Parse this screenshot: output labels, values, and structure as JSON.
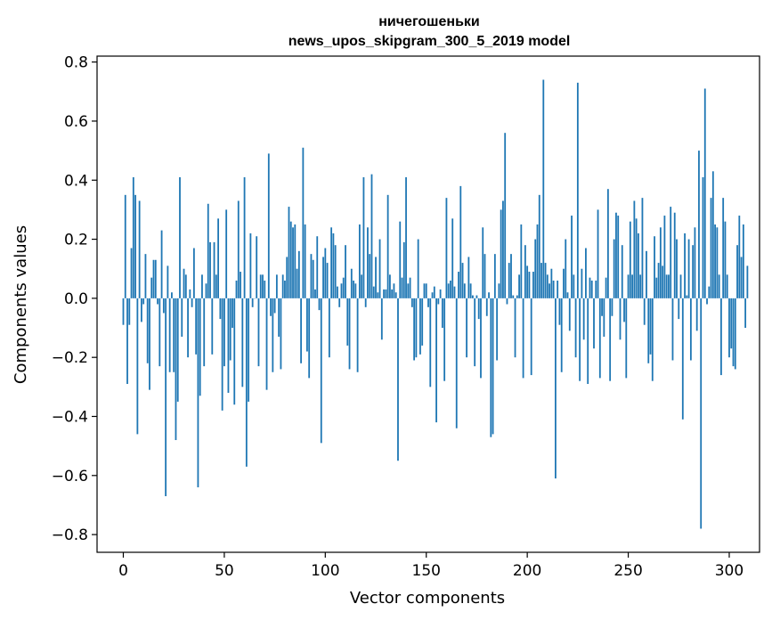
{
  "chart_data": {
    "type": "bar",
    "title_line1": "ничегошеньки",
    "title_line2": "news_upos_skipgram_300_5_2019 model",
    "xlabel": "Vector components",
    "ylabel": "Components values",
    "xlim": [
      -13,
      315
    ],
    "ylim": [
      -0.86,
      0.82
    ],
    "xticks": [
      0,
      50,
      100,
      150,
      200,
      250,
      300
    ],
    "yticks": [
      -0.8,
      -0.6,
      -0.4,
      -0.2,
      0.0,
      0.2,
      0.4,
      0.6,
      0.8
    ],
    "ytick_labels": [
      "−0.8",
      "−0.6",
      "−0.4",
      "−0.2",
      "0.0",
      "0.2",
      "0.4",
      "0.6",
      "0.8"
    ],
    "bar_color": "#1f77b4",
    "values": [
      -0.09,
      0.35,
      -0.29,
      -0.09,
      0.17,
      0.41,
      0.35,
      -0.46,
      0.33,
      -0.08,
      -0.02,
      0.15,
      -0.22,
      -0.31,
      0.07,
      0.13,
      0.13,
      -0.02,
      -0.23,
      0.23,
      -0.05,
      -0.67,
      0.11,
      -0.25,
      0.02,
      -0.25,
      -0.48,
      -0.35,
      0.41,
      -0.13,
      0.1,
      0.08,
      -0.2,
      0.03,
      -0.03,
      0.17,
      -0.19,
      -0.64,
      -0.33,
      0.08,
      -0.23,
      0.05,
      0.32,
      0.19,
      -0.19,
      0.19,
      0.08,
      0.27,
      -0.07,
      -0.38,
      -0.23,
      0.3,
      -0.32,
      -0.21,
      -0.1,
      -0.36,
      0.06,
      0.33,
      0.09,
      -0.3,
      0.41,
      -0.57,
      -0.35,
      0.22,
      -0.03,
      0.0,
      0.21,
      -0.23,
      0.08,
      0.08,
      0.06,
      -0.31,
      0.49,
      -0.06,
      -0.25,
      -0.05,
      0.08,
      -0.13,
      -0.24,
      0.08,
      0.06,
      0.14,
      0.31,
      0.26,
      0.24,
      0.25,
      0.1,
      0.16,
      -0.22,
      0.51,
      0.25,
      -0.18,
      -0.27,
      0.15,
      0.13,
      0.03,
      0.21,
      -0.04,
      -0.49,
      0.14,
      0.17,
      0.12,
      -0.2,
      0.24,
      0.22,
      0.18,
      0.04,
      -0.03,
      0.05,
      0.07,
      0.18,
      -0.16,
      -0.24,
      0.1,
      0.06,
      0.05,
      -0.25,
      0.25,
      0.08,
      0.41,
      -0.03,
      0.24,
      0.15,
      0.42,
      0.04,
      0.14,
      0.02,
      0.2,
      -0.14,
      0.03,
      0.03,
      0.35,
      0.08,
      0.03,
      0.05,
      0.02,
      -0.55,
      0.26,
      0.07,
      0.19,
      0.41,
      0.05,
      0.07,
      -0.03,
      -0.21,
      -0.2,
      0.2,
      -0.19,
      -0.16,
      0.05,
      0.05,
      -0.03,
      -0.3,
      0.02,
      0.04,
      -0.42,
      -0.02,
      0.03,
      -0.1,
      -0.28,
      0.34,
      0.05,
      0.06,
      0.27,
      0.04,
      -0.44,
      0.09,
      0.38,
      0.12,
      0.05,
      -0.2,
      0.14,
      0.05,
      0.01,
      -0.23,
      0.01,
      -0.07,
      -0.27,
      0.24,
      0.15,
      -0.06,
      0.02,
      -0.47,
      -0.46,
      0.15,
      -0.21,
      0.05,
      0.3,
      0.33,
      0.56,
      -0.02,
      0.12,
      0.15,
      0.01,
      -0.2,
      0.01,
      0.08,
      0.25,
      -0.27,
      0.18,
      0.11,
      0.09,
      -0.26,
      0.09,
      0.2,
      0.25,
      0.35,
      0.12,
      0.74,
      0.12,
      0.08,
      0.05,
      0.1,
      0.06,
      -0.61,
      0.06,
      -0.09,
      -0.25,
      0.1,
      0.2,
      0.02,
      -0.11,
      0.28,
      0.08,
      -0.2,
      0.73,
      -0.28,
      0.1,
      -0.14,
      0.17,
      -0.29,
      0.07,
      0.06,
      -0.17,
      0.06,
      0.3,
      -0.27,
      -0.06,
      -0.13,
      0.07,
      0.37,
      -0.28,
      -0.06,
      0.2,
      0.29,
      0.28,
      -0.14,
      0.18,
      -0.08,
      -0.27,
      0.08,
      0.26,
      0.08,
      0.33,
      0.27,
      0.22,
      0.08,
      0.34,
      -0.09,
      0.16,
      -0.22,
      -0.19,
      -0.28,
      0.21,
      0.07,
      0.12,
      0.24,
      0.11,
      0.28,
      0.08,
      0.08,
      0.31,
      -0.21,
      0.29,
      0.2,
      -0.07,
      0.08,
      -0.41,
      0.22,
      0.01,
      0.2,
      -0.21,
      0.18,
      0.24,
      -0.11,
      0.5,
      -0.78,
      0.41,
      0.71,
      -0.02,
      0.04,
      0.34,
      0.43,
      0.25,
      0.24,
      0.08,
      -0.26,
      0.34,
      0.26,
      0.08,
      -0.2,
      -0.17,
      -0.23,
      -0.24,
      0.18,
      0.28,
      0.14,
      0.25,
      -0.1,
      0.11
    ]
  }
}
